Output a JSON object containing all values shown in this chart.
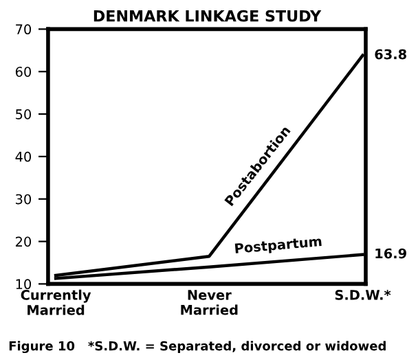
{
  "chart_data": {
    "type": "line",
    "title": "DENMARK LINKAGE STUDY",
    "categories": [
      "Currently\nMarried",
      "Never\nMarried",
      "S.D.W.*"
    ],
    "series": [
      {
        "name": "Postabortion",
        "color": "#000000",
        "values": [
          12,
          16.5,
          63.8
        ],
        "value_labels": [
          null,
          null,
          "63.8"
        ]
      },
      {
        "name": "Postpartum",
        "color": "#000000",
        "values": [
          11.3,
          14,
          16.9
        ],
        "value_labels": [
          null,
          null,
          "16.9"
        ]
      }
    ],
    "ylim": [
      10,
      70
    ],
    "yticks": [
      10,
      20,
      30,
      40,
      50,
      60,
      70
    ],
    "grid": false,
    "legend": false,
    "marker": "none",
    "line_style": "solid",
    "annotations": [
      "Figure 10   *S.D.W. = Separated, divorced or widowed"
    ]
  }
}
